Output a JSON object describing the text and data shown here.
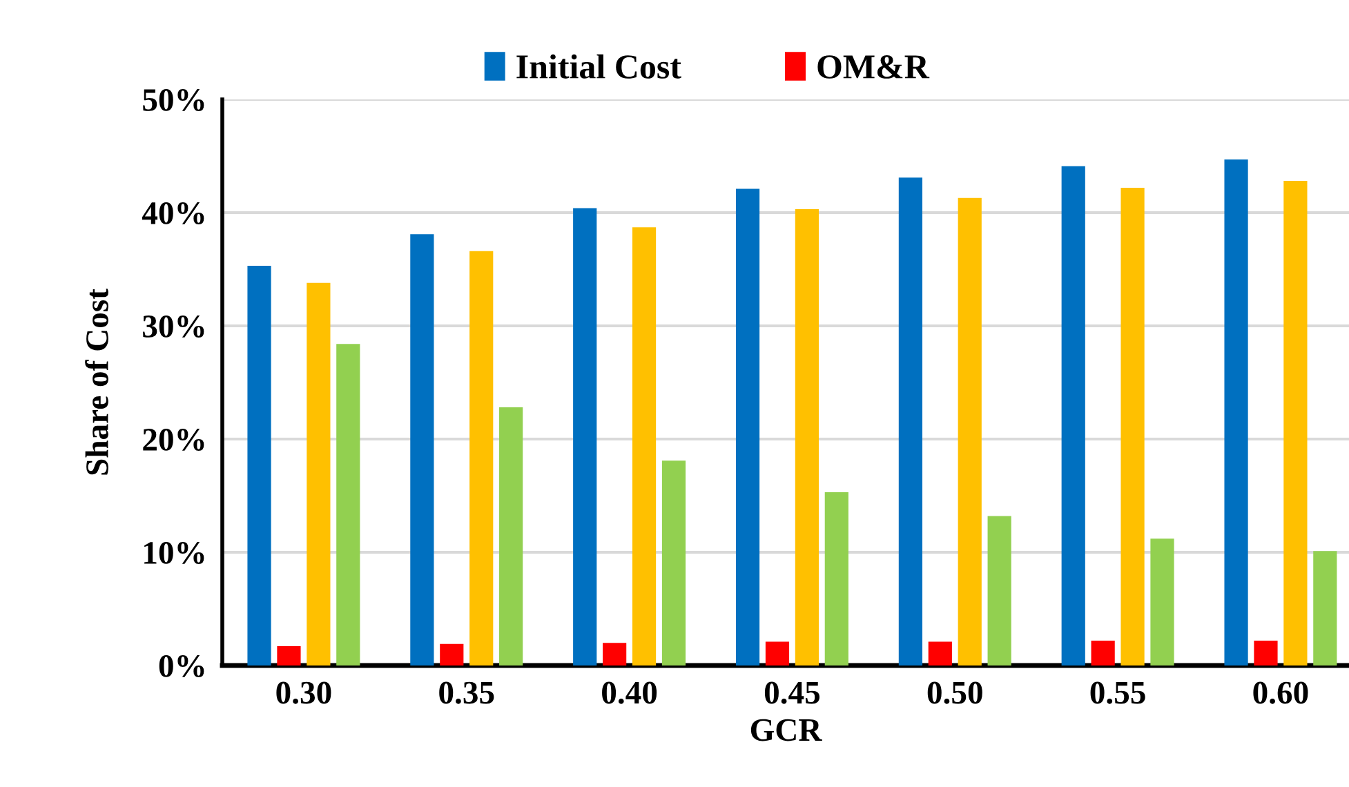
{
  "chart_data": {
    "type": "bar",
    "xlabel": "GCR",
    "ylabel": "Share of Cost",
    "categories": [
      "0.30",
      "0.35",
      "0.40",
      "0.45",
      "0.50",
      "0.55",
      "0.60"
    ],
    "series": [
      {
        "name": "Initial Cost",
        "color": "#0070c0",
        "values": [
          35.3,
          38.1,
          40.4,
          42.1,
          43.1,
          44.1,
          44.7
        ]
      },
      {
        "name": "OM&R",
        "color": "#ff0000",
        "values": [
          1.7,
          1.9,
          2.0,
          2.1,
          2.1,
          2.2,
          2.2
        ]
      },
      {
        "color": "#ffc000",
        "values": [
          33.8,
          36.6,
          38.7,
          40.3,
          41.3,
          42.2,
          42.8
        ]
      },
      {
        "color": "#92d050",
        "values": [
          28.4,
          22.8,
          18.1,
          15.3,
          13.2,
          11.2,
          10.1
        ]
      }
    ],
    "ylim": [
      0,
      50
    ],
    "yticks": [
      {
        "value": 0,
        "label": "0%"
      },
      {
        "value": 10,
        "label": "10%"
      },
      {
        "value": 20,
        "label": "20%"
      },
      {
        "value": 30,
        "label": "30%"
      },
      {
        "value": 40,
        "label": "40%"
      },
      {
        "value": 50,
        "label": "50%"
      }
    ],
    "grid": "y",
    "legend": "top"
  }
}
